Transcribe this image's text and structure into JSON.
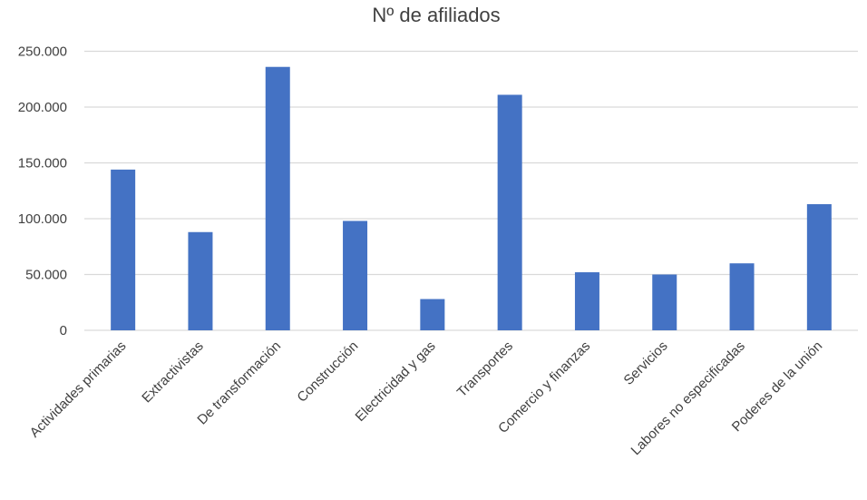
{
  "chart_data": {
    "type": "bar",
    "title": "Nº de afiliados",
    "xlabel": "",
    "ylabel": "",
    "ylim": [
      0,
      250000
    ],
    "yticks": [
      0,
      50000,
      100000,
      150000,
      200000,
      250000
    ],
    "ytick_labels": [
      "0",
      "50.000",
      "100.000",
      "150.000",
      "200.000",
      "250.000"
    ],
    "grid": true,
    "legend": "none",
    "bar_color": "#4472C4",
    "categories": [
      "Actividades primarias",
      "Extractivistas",
      "De transformación",
      "Construcción",
      "Electricidad y gas",
      "Transportes",
      "Comercio y finanzas",
      "Servicios",
      "Labores no especificadas",
      "Poderes de la unión"
    ],
    "values": [
      144000,
      88000,
      236000,
      98000,
      28000,
      211000,
      52000,
      50000,
      60000,
      113000
    ]
  }
}
